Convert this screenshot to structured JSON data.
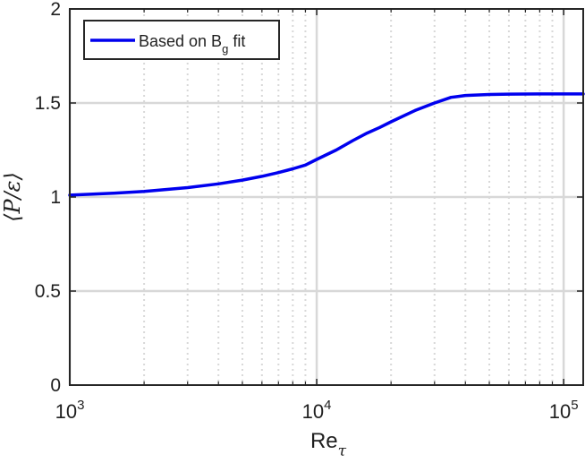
{
  "chart_data": {
    "type": "line",
    "title": "",
    "xlabel": "Re_τ",
    "xlabel_main": "Re",
    "xlabel_sub": "τ",
    "ylabel": "⟨P/ε⟩",
    "x_scale": "log",
    "xlim": [
      1000,
      120000
    ],
    "ylim": [
      0,
      2
    ],
    "x_major_ticks": [
      1000,
      10000,
      100000
    ],
    "x_tick_labels": [
      {
        "base": "10",
        "exp": "3"
      },
      {
        "base": "10",
        "exp": "4"
      },
      {
        "base": "10",
        "exp": "5"
      }
    ],
    "y_ticks": [
      0,
      0.5,
      1,
      1.5,
      2
    ],
    "y_tick_labels": [
      "0",
      "0.5",
      "1",
      "1.5",
      "2"
    ],
    "grid": "on",
    "minor_grid": "on",
    "legend_placement": "top-left",
    "legend": {
      "label_main": "Based on B",
      "label_sub": "g",
      "label_tail": " fit"
    },
    "series": [
      {
        "name": "Based on B_g fit",
        "color": "#0000ee",
        "x": [
          1000,
          1500,
          2000,
          3000,
          4000,
          5000,
          6000,
          7000,
          8000,
          9000,
          10000,
          12000,
          14000,
          16000,
          18000,
          20000,
          25000,
          30000,
          35000,
          40000,
          50000,
          60000,
          80000,
          100000,
          120000
        ],
        "y": [
          1.01,
          1.02,
          1.03,
          1.05,
          1.07,
          1.09,
          1.11,
          1.13,
          1.15,
          1.17,
          1.2,
          1.25,
          1.3,
          1.34,
          1.37,
          1.4,
          1.46,
          1.5,
          1.53,
          1.54,
          1.545,
          1.547,
          1.548,
          1.548,
          1.548
        ]
      }
    ]
  },
  "colors": {
    "line": "#0000ee",
    "grid": "#d8d8d8",
    "axes": "#262626"
  }
}
